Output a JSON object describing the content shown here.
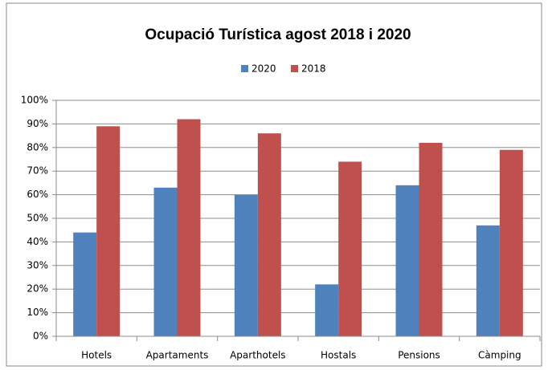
{
  "chart_data": {
    "type": "bar",
    "title": "Ocupació Turística agost 2018 i 2020",
    "categories": [
      "Hotels",
      "Apartaments",
      "Aparthotels",
      "Hostals",
      "Pensions",
      "Càmping"
    ],
    "series": [
      {
        "name": "2020",
        "color": "#4f81bd",
        "values": [
          44,
          63,
          60,
          22,
          64,
          47
        ]
      },
      {
        "name": "2018",
        "color": "#c0504d",
        "values": [
          89,
          92,
          86,
          74,
          82,
          79
        ]
      }
    ],
    "ylim": [
      0,
      100
    ],
    "yticks": [
      {
        "value": 0,
        "label": "0%"
      },
      {
        "value": 10,
        "label": "10%"
      },
      {
        "value": 20,
        "label": "20%"
      },
      {
        "value": 30,
        "label": "30%"
      },
      {
        "value": 40,
        "label": "40%"
      },
      {
        "value": 50,
        "label": "50%"
      },
      {
        "value": 60,
        "label": "60%"
      },
      {
        "value": 70,
        "label": "70%"
      },
      {
        "value": 80,
        "label": "80%"
      },
      {
        "value": 90,
        "label": "90%"
      },
      {
        "value": 100,
        "label": "100%"
      }
    ],
    "grid": true,
    "legend": "top"
  }
}
